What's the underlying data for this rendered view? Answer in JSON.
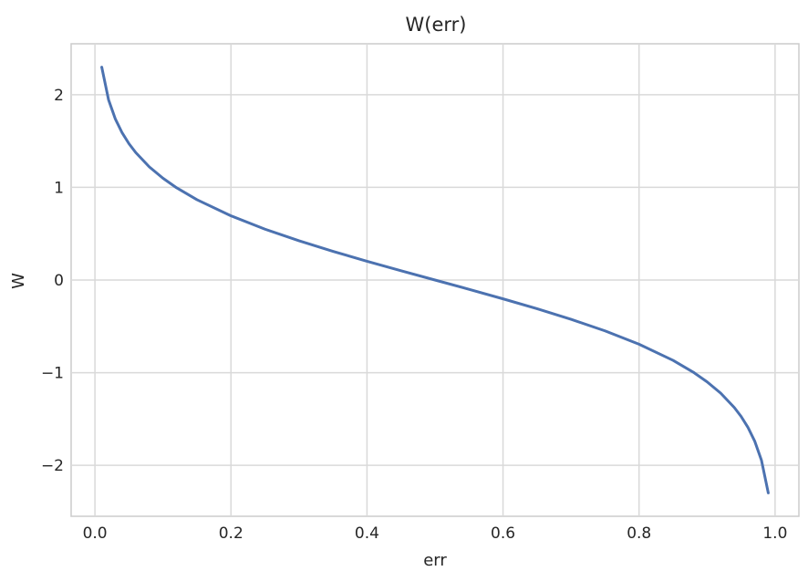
{
  "chart_data": {
    "type": "line",
    "title": "W(err)",
    "xlabel": "err",
    "ylabel": "W",
    "xlim": [
      -0.035,
      1.035
    ],
    "ylim": [
      -2.55,
      2.55
    ],
    "xticks": [
      0.0,
      0.2,
      0.4,
      0.6,
      0.8,
      1.0
    ],
    "xtick_labels": [
      "0.0",
      "0.2",
      "0.4",
      "0.6",
      "0.8",
      "1.0"
    ],
    "yticks": [
      -2,
      -1,
      0,
      1,
      2
    ],
    "ytick_labels": [
      "−2",
      "−1",
      "0",
      "1",
      "2"
    ],
    "grid": true,
    "series": [
      {
        "formula": "0.5 * ln((1 - err) / err)",
        "color": "#4c72b0",
        "x": [
          0.01,
          0.02,
          0.03,
          0.04,
          0.05,
          0.06,
          0.08,
          0.1,
          0.12,
          0.15,
          0.2,
          0.25,
          0.3,
          0.35,
          0.4,
          0.45,
          0.5,
          0.55,
          0.6,
          0.65,
          0.7,
          0.75,
          0.8,
          0.85,
          0.88,
          0.9,
          0.92,
          0.94,
          0.95,
          0.96,
          0.97,
          0.98,
          0.99
        ],
        "y": [
          2.298,
          1.946,
          1.738,
          1.589,
          1.472,
          1.376,
          1.221,
          1.099,
          0.996,
          0.867,
          0.693,
          0.549,
          0.424,
          0.31,
          0.203,
          0.1,
          0.0,
          -0.1,
          -0.203,
          -0.31,
          -0.424,
          -0.549,
          -0.693,
          -0.867,
          -0.996,
          -1.099,
          -1.221,
          -1.376,
          -1.472,
          -1.589,
          -1.738,
          -1.946,
          -2.298
        ]
      }
    ]
  },
  "colors": {
    "background": "#ffffff",
    "grid": "#d9d9d9",
    "frame": "#cccccc",
    "line": "#4c72b0",
    "text": "#262626"
  }
}
